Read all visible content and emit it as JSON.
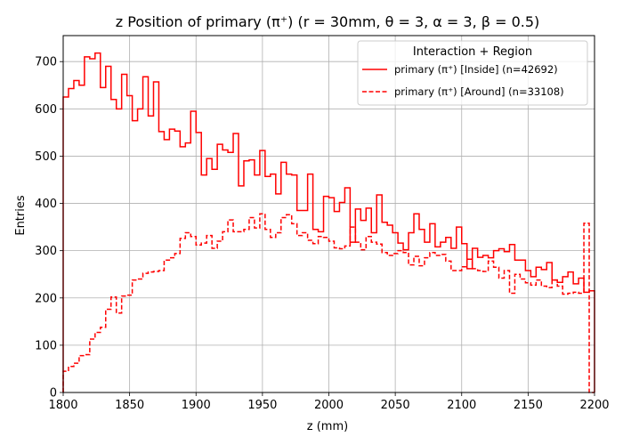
{
  "chart_data": {
    "type": "line",
    "title": "z Position of primary (π⁺) (r = 30mm, θ = 3, α = 3, β = 0.5)",
    "xlabel": "z (mm)",
    "ylabel": "Entries",
    "xlim": [
      1800,
      2200
    ],
    "ylim": [
      0,
      755
    ],
    "xticks": [
      1800,
      1850,
      1900,
      1950,
      2000,
      2050,
      2100,
      2150,
      2200
    ],
    "yticks": [
      0,
      100,
      200,
      300,
      400,
      500,
      600,
      700
    ],
    "grid": true,
    "legend_title": "Interaction + Region",
    "legend_position": "upper right",
    "bin_edges_start": 1800,
    "bin_width": 4,
    "series": [
      {
        "name": "primary (π⁺) [Inside] (n=42692)",
        "color": "#ff0000",
        "linestyle": "solid",
        "values": [
          625,
          643,
          660,
          650,
          710,
          706,
          718,
          645,
          690,
          620,
          600,
          673,
          628,
          575,
          600,
          668,
          585,
          657,
          552,
          535,
          557,
          553,
          520,
          528,
          595,
          550,
          460,
          495,
          472,
          525,
          513,
          508,
          548,
          437,
          490,
          492,
          460,
          512,
          457,
          462,
          420,
          487,
          462,
          460,
          385,
          385,
          462,
          345,
          340,
          415,
          412,
          383,
          402,
          433,
          318,
          388,
          364,
          390,
          338,
          418,
          360,
          354,
          338,
          316,
          302,
          338,
          378,
          345,
          318,
          357,
          308,
          318,
          328,
          305,
          350,
          315,
          262,
          305,
          286,
          290,
          285,
          300,
          304,
          298,
          313,
          280,
          280,
          258,
          245,
          265,
          260,
          275,
          238,
          233,
          245,
          255,
          230,
          242,
          212,
          215
        ]
      },
      {
        "name": "primary (π⁺) [Around] (n=33108)",
        "color": "#ff0000",
        "linestyle": "dashed",
        "values": [
          45,
          55,
          62,
          78,
          80,
          113,
          127,
          138,
          176,
          202,
          168,
          204,
          206,
          238,
          240,
          252,
          255,
          256,
          258,
          280,
          285,
          294,
          326,
          338,
          330,
          312,
          316,
          332,
          305,
          320,
          340,
          365,
          340,
          340,
          345,
          370,
          348,
          378,
          345,
          328,
          338,
          370,
          376,
          357,
          332,
          338,
          322,
          315,
          330,
          328,
          320,
          306,
          304,
          310,
          350,
          318,
          302,
          330,
          318,
          314,
          296,
          290,
          294,
          300,
          296,
          270,
          288,
          268,
          285,
          296,
          290,
          292,
          278,
          258,
          258,
          266,
          282,
          262,
          258,
          256,
          278,
          265,
          242,
          258,
          210,
          250,
          240,
          232,
          227,
          238,
          225,
          222,
          238,
          225,
          208,
          210,
          212,
          210,
          358,
          0
        ]
      }
    ]
  }
}
